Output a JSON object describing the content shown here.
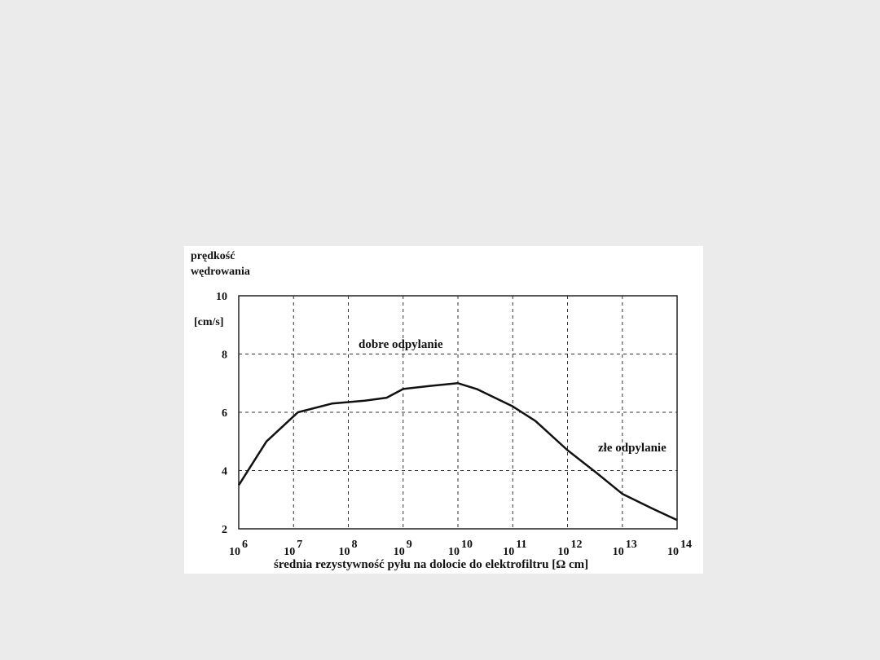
{
  "chart_data": {
    "type": "line",
    "ylabel_line1": "prędkość",
    "ylabel_line2": "wędrowania",
    "yunit": "[cm/s]",
    "xlabel": "średnia rezystywność pyłu na dolocie do elektrofiltru [Ω   cm]",
    "xscale": "log",
    "xlim": [
      1000000,
      100000000000000
    ],
    "ylim": [
      2,
      10
    ],
    "yticks": [
      "2",
      "4",
      "6",
      "8",
      "10"
    ],
    "xticks": [
      {
        "base": "10",
        "exp": "6"
      },
      {
        "base": "10",
        "exp": "7"
      },
      {
        "base": "10",
        "exp": "8"
      },
      {
        "base": "10",
        "exp": "9"
      },
      {
        "base": "10",
        "exp": "10"
      },
      {
        "base": "10",
        "exp": "11"
      },
      {
        "base": "10",
        "exp": "12"
      },
      {
        "base": "10",
        "exp": "13"
      },
      {
        "base": "10",
        "exp": "14"
      }
    ],
    "grid": true,
    "annotations": {
      "good": "dobre   odpylanie",
      "bad": "złe odpylanie"
    },
    "series": [
      {
        "x": [
          1000000,
          3200000,
          12000000,
          50000000,
          200000000,
          500000000,
          1000000000,
          3000000000,
          10000000000,
          22000000000,
          100000000000,
          260000000000,
          1000000000000,
          3500000000000,
          10000000000000,
          35000000000000,
          100000000000000
        ],
        "y": [
          3.5,
          5.0,
          6.0,
          6.3,
          6.4,
          6.5,
          6.8,
          6.9,
          7.0,
          6.8,
          6.2,
          5.7,
          4.7,
          3.9,
          3.2,
          2.7,
          2.3
        ]
      }
    ]
  }
}
